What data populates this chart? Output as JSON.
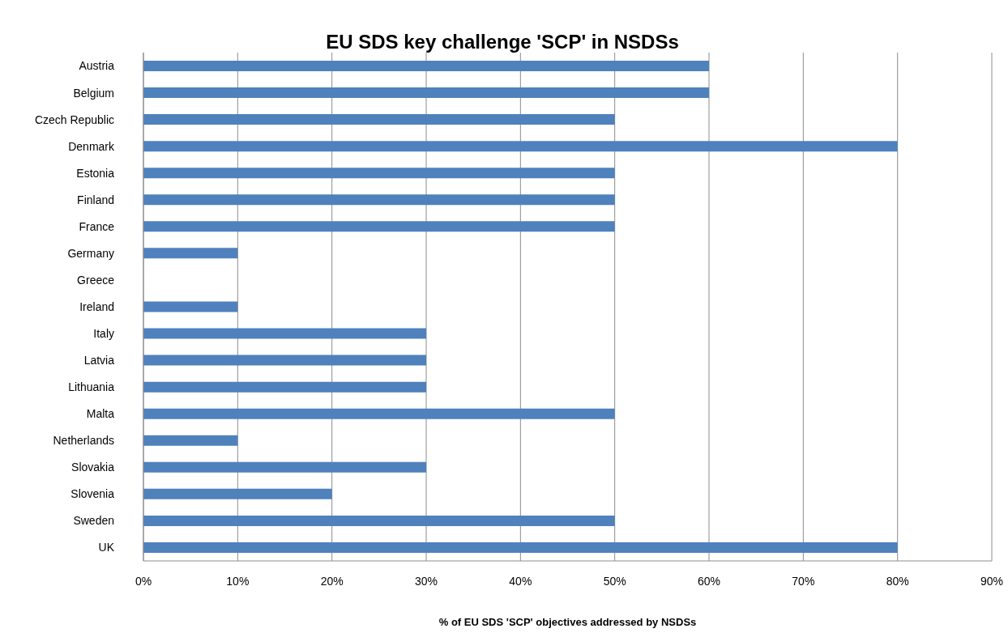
{
  "chart_data": {
    "type": "bar",
    "orientation": "horizontal",
    "title": "EU SDS key challenge 'SCP' in NSDSs",
    "xlabel": "% of EU SDS 'SCP' objectives addressed by NSDSs",
    "categories": [
      "Austria",
      "Belgium",
      "Czech Republic",
      "Denmark",
      "Estonia",
      "Finland",
      "France",
      "Germany",
      "Greece",
      "Ireland",
      "Italy",
      "Latvia",
      "Lithuania",
      "Malta",
      "Netherlands",
      "Slovakia",
      "Slovenia",
      "Sweden",
      "UK"
    ],
    "values": [
      60,
      60,
      50,
      80,
      50,
      50,
      50,
      10,
      0,
      10,
      30,
      30,
      30,
      50,
      10,
      30,
      20,
      50,
      80
    ],
    "color": "#4f81bd",
    "xlim": [
      0,
      90
    ],
    "xticks": [
      {
        "value": 0,
        "label": "0%"
      },
      {
        "value": 10,
        "label": "10%"
      },
      {
        "value": 20,
        "label": "20%"
      },
      {
        "value": 30,
        "label": "30%"
      },
      {
        "value": 40,
        "label": "40%"
      },
      {
        "value": 50,
        "label": "50%"
      },
      {
        "value": 60,
        "label": "60%"
      },
      {
        "value": 70,
        "label": "70%"
      },
      {
        "value": 80,
        "label": "80%"
      },
      {
        "value": 90,
        "label": "90%"
      }
    ],
    "grid": "x",
    "legend": false
  }
}
